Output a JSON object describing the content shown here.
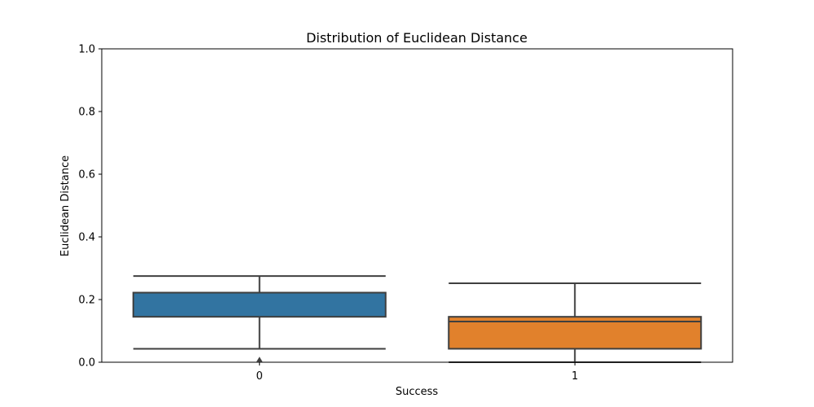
{
  "chart_data": {
    "type": "box",
    "title": "Distribution of Euclidean Distance",
    "xlabel": "Success",
    "ylabel": "Euclidean Distance",
    "ylim": [
      0,
      1
    ],
    "yticks": [
      "0.0",
      "0.2",
      "0.4",
      "0.6",
      "0.8",
      "1.0"
    ],
    "ytick_values": [
      0,
      0.2,
      0.4,
      0.6,
      0.8,
      1.0
    ],
    "categories": [
      "0",
      "1"
    ],
    "grid": false,
    "boxes": [
      {
        "category": "0",
        "whisker_low": 0.043,
        "q1": 0.145,
        "median": 0.222,
        "q3": 0.222,
        "whisker_high": 0.275,
        "outliers": [
          0.0
        ],
        "color": "#3274a1"
      },
      {
        "category": "1",
        "whisker_low": 0.0,
        "q1": 0.043,
        "median": 0.13,
        "q3": 0.145,
        "whisker_high": 0.252,
        "outliers": [],
        "color": "#e1812c"
      }
    ]
  }
}
